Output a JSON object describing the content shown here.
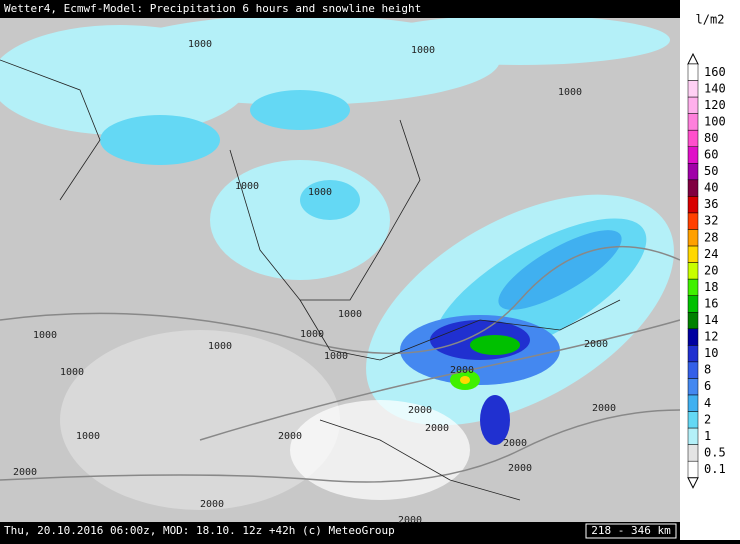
{
  "title": "Wetter4, Ecmwf-Model: Precipitation 6 hours and snowline height",
  "footer": "Thu, 20.10.2016 06:00z, MOD: 18.10. 12z +42h (c) MeteoGroup",
  "scale": "218 - 346 km",
  "legend": {
    "unit": "l/m2",
    "items": [
      {
        "label": "160",
        "color": "#ffffff"
      },
      {
        "label": "140",
        "color": "#ffd0f4"
      },
      {
        "label": "120",
        "color": "#ffb0ec"
      },
      {
        "label": "100",
        "color": "#ff80dc"
      },
      {
        "label": "80",
        "color": "#ff50cc"
      },
      {
        "label": "60",
        "color": "#e010c8"
      },
      {
        "label": "50",
        "color": "#a000a8"
      },
      {
        "label": "40",
        "color": "#800040"
      },
      {
        "label": "36",
        "color": "#d80000"
      },
      {
        "label": "32",
        "color": "#ff4000"
      },
      {
        "label": "28",
        "color": "#ffa000"
      },
      {
        "label": "24",
        "color": "#ffd800"
      },
      {
        "label": "20",
        "color": "#c8ff00"
      },
      {
        "label": "18",
        "color": "#40f000"
      },
      {
        "label": "16",
        "color": "#00c000"
      },
      {
        "label": "14",
        "color": "#008000"
      },
      {
        "label": "12",
        "color": "#0000a0"
      },
      {
        "label": "10",
        "color": "#2030d0"
      },
      {
        "label": "8",
        "color": "#3460e8"
      },
      {
        "label": "6",
        "color": "#4488f0"
      },
      {
        "label": "4",
        "color": "#40b0f0"
      },
      {
        "label": "2",
        "color": "#64d8f4"
      },
      {
        "label": "1",
        "color": "#b4f0f8"
      },
      {
        "label": "0.5",
        "color": "#e4e4e4"
      },
      {
        "label": "0.1",
        "color": "#ffffff"
      }
    ]
  },
  "contour_labels": [
    "1000",
    "1000",
    "1000",
    "1000",
    "1000",
    "1000",
    "1000",
    "1000",
    "1000",
    "1000",
    "1000",
    "1000",
    "2000",
    "2000",
    "2000",
    "2000",
    "2000",
    "2000",
    "2000",
    "2000",
    "2000",
    "2000",
    "2000"
  ]
}
